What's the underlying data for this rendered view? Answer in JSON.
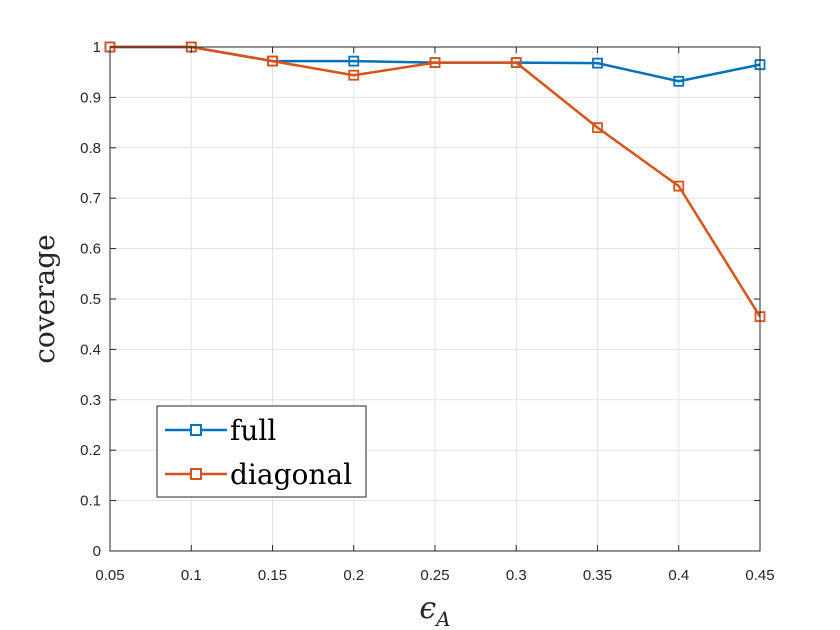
{
  "chart_data": {
    "type": "line",
    "xlabel_symbol": "ϵ",
    "xlabel_subscript": "A",
    "ylabel": "coverage",
    "xlim": [
      0.05,
      0.45
    ],
    "ylim": [
      0,
      1
    ],
    "grid": true,
    "legend_position": "bottom-left",
    "x": [
      0.05,
      0.1,
      0.15,
      0.2,
      0.25,
      0.3,
      0.35,
      0.4,
      0.45
    ],
    "x_tick_labels": [
      "0.05",
      "0.1",
      "0.15",
      "0.2",
      "0.25",
      "0.3",
      "0.35",
      "0.4",
      "0.45"
    ],
    "y_ticks": [
      0,
      0.1,
      0.2,
      0.3,
      0.4,
      0.5,
      0.6,
      0.7,
      0.8,
      0.9,
      1
    ],
    "y_tick_labels": [
      "0",
      "0.1",
      "0.2",
      "0.3",
      "0.4",
      "0.5",
      "0.6",
      "0.7",
      "0.8",
      "0.9",
      "1"
    ],
    "series": [
      {
        "name": "full",
        "color": "#0072BD",
        "marker": "square",
        "values": [
          1.0,
          1.0,
          0.972,
          0.972,
          0.969,
          0.969,
          0.968,
          0.932,
          0.965
        ]
      },
      {
        "name": "diagonal",
        "color": "#D95319",
        "marker": "square",
        "values": [
          1.0,
          1.0,
          0.972,
          0.944,
          0.969,
          0.969,
          0.84,
          0.724,
          0.465
        ]
      }
    ]
  }
}
